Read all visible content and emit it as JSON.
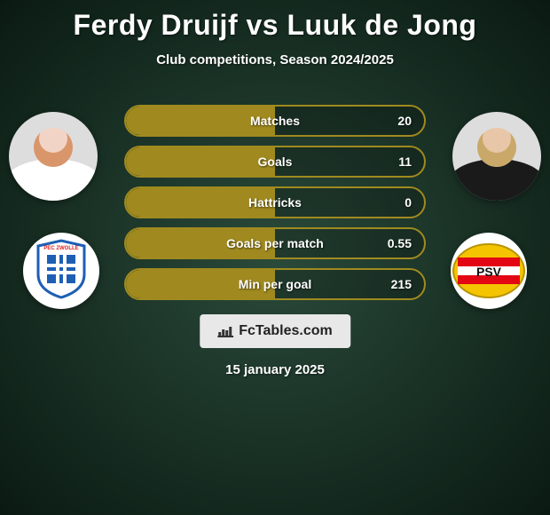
{
  "title": "Ferdy Druijf vs Luuk de Jong",
  "subtitle": "Club competitions, Season 2024/2025",
  "date": "15 january 2025",
  "brand": "FcTables.com",
  "colors": {
    "bar_border": "#a08a1f",
    "bar_fill": "#a08a1f",
    "bg_dark": "#0a1a12",
    "text": "#ffffff"
  },
  "player_left": {
    "name": "Ferdy Druijf",
    "skin": "#f2d4c6",
    "hair": "#d9966b",
    "shirt": "#ffffff"
  },
  "player_right": {
    "name": "Luuk de Jong",
    "skin": "#e8c7a8",
    "hair": "#c9a86a",
    "shirt": "#1a1a1a"
  },
  "club_left": {
    "name": "PEC Zwolle",
    "badge_text": "PEC ZWOLLE",
    "primary": "#1e5fb4",
    "secondary": "#ffffff",
    "accent": "#d22"
  },
  "club_right": {
    "name": "PSV",
    "badge_text": "PSV",
    "primary": "#e30613",
    "secondary": "#ffffff",
    "accent": "#f5c400"
  },
  "stats": [
    {
      "label": "Matches",
      "value": "20",
      "fill_pct": 50
    },
    {
      "label": "Goals",
      "value": "11",
      "fill_pct": 50
    },
    {
      "label": "Hattricks",
      "value": "0",
      "fill_pct": 50
    },
    {
      "label": "Goals per match",
      "value": "0.55",
      "fill_pct": 50
    },
    {
      "label": "Min per goal",
      "value": "215",
      "fill_pct": 50
    }
  ]
}
